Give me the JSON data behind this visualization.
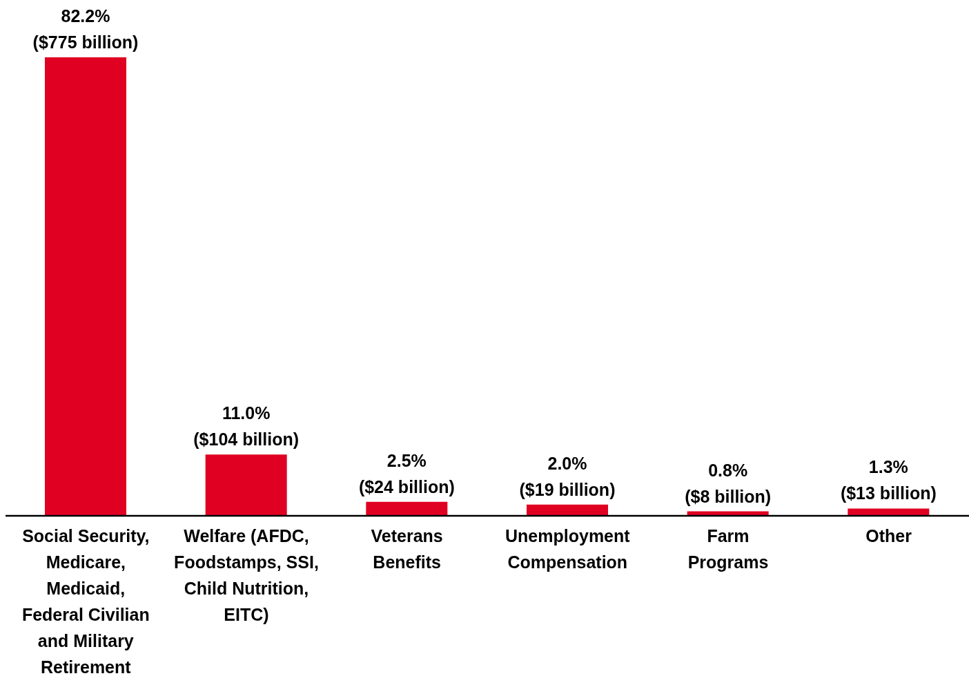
{
  "chart_data": {
    "type": "bar",
    "categories": [
      "Social Security,\nMedicare,\nMedicaid,\nFederal Civilian\nand Military\nRetirement",
      "Welfare (AFDC,\nFoodstamps, SSI,\nChild Nutrition,\nEITC)",
      "Veterans\nBenefits",
      "Unemployment\nCompensation",
      "Farm\nPrograms",
      "Other"
    ],
    "values": [
      82.2,
      11.0,
      2.5,
      2.0,
      0.8,
      1.3
    ],
    "value_labels": [
      "82.2%\n($775 billion)",
      "11.0%\n($104 billion)",
      "2.5%\n($24 billion)",
      "2.0%\n($19 billion)",
      "0.8%\n($8 billion)",
      "1.3%\n($13 billion)"
    ],
    "color": "#e00022"
  }
}
